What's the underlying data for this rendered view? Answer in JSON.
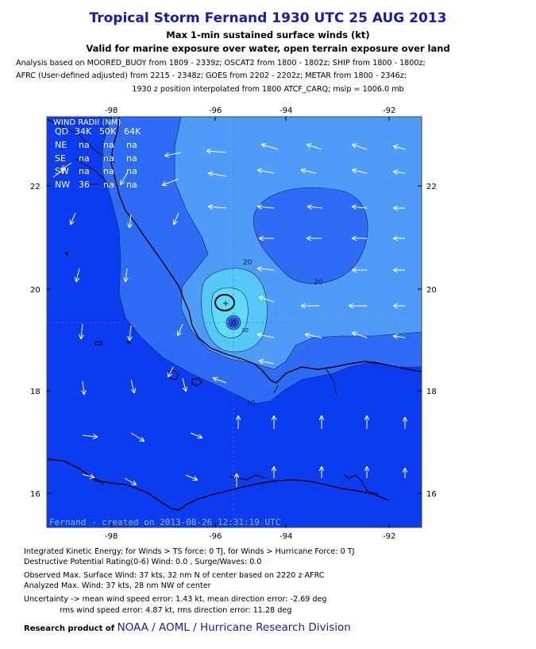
{
  "header": {
    "title": "Tropical Storm Fernand 1930 UTC 25 AUG 2013",
    "subtitle1": "Max 1-min sustained surface winds (kt)",
    "subtitle2": "Valid for marine exposure over water, open terrain exposure over land",
    "analysis1": "Analysis based on MOORED_BUOY from 1809 - 2339z; OSCAT2 from 1800 - 1802z; SHIP from 1800 - 1800z;",
    "analysis2": "AFRC (User-defined adjusted) from 2215 - 2348z; GOES from 2202 - 2202z; METAR from 1800 - 2346z;",
    "analysis3": "1930 z position interpolated from 1800 ATCF_CARQ; mslp = 1006.0 mb"
  },
  "map": {
    "lon_ticks": [
      "-98",
      "-96",
      "-94",
      "-92"
    ],
    "lat_ticks": [
      "22",
      "20",
      "18",
      "16"
    ],
    "contour_labels": [
      "20",
      "20",
      "10",
      "30"
    ],
    "credit_line": "Fernand - created on 2013-08-26 12:31:19 UTC",
    "colors": {
      "deep": "#0c3cf0",
      "c10": "#2e6cf6",
      "c20": "#4f9cf8",
      "c30": "#55c8f8",
      "c35": "#60dcfa",
      "land": "#0a2ef4"
    }
  },
  "wind_radii": {
    "title": "WIND RADII (NM)",
    "header": [
      "QD",
      "34K",
      "50K",
      "64K"
    ],
    "rows": [
      [
        "NE",
        "na",
        "na",
        "na"
      ],
      [
        "SE",
        "na",
        "na",
        "na"
      ],
      [
        "SW",
        "na",
        "na",
        "na"
      ],
      [
        "NW",
        "36",
        "na",
        "na"
      ]
    ]
  },
  "footer": {
    "ike": "Integrated Kinetic Energy: for Winds > TS force: 0 TJ, for Winds > Hurricane Force: 0 TJ",
    "dpr": "Destructive Potential Rating(0-6)  Wind: 0.0 , Surge/Waves: 0.0",
    "observed": "Observed Max. Surface Wind: 37 kts, 32 nm N of center based on 2220 z AFRC",
    "analyzed": "Analyzed Max. Wind: 37 kts, 28 nm  NW of center",
    "uncert1": "Uncertainty -> mean wind speed error: 1.43 kt, mean direction error:  -2.69 deg",
    "uncert2": "rms wind speed error: 4.87 kt, rms direction error: 11.28 deg",
    "credit_prefix": "Research product of",
    "credit_org": "NOAA  /  AOML  /  Hurricane Research Division"
  }
}
